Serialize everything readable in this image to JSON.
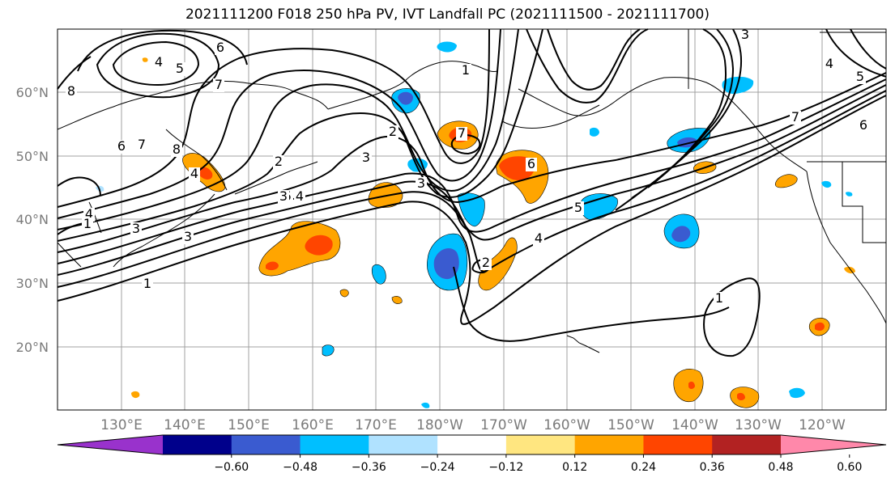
{
  "title": "2021111200 F018 250 hPa PV, IVT Landfall PC (2021111500 - 2021111700)",
  "lat_labels": [
    "60°N",
    "50°N",
    "40°N",
    "30°N",
    "20°N"
  ],
  "lon_labels": [
    "130°E",
    "140°E",
    "150°E",
    "160°E",
    "170°E",
    "180°W",
    "170°W",
    "160°W",
    "150°W",
    "140°W",
    "130°W",
    "120°W"
  ],
  "contour_labels": [
    "4",
    "5",
    "6",
    "7",
    "8",
    "6",
    "7",
    "8",
    "1",
    "2",
    "3",
    "1",
    "3",
    "4",
    "5",
    "4",
    "2",
    "3",
    "1",
    "7",
    "6",
    "5",
    "4",
    "3",
    "4",
    "5",
    "6",
    "7",
    "2",
    "1",
    "3",
    "4",
    "3"
  ],
  "colorbar": {
    "ticks": [
      "−0.60",
      "−0.48",
      "−0.36",
      "−0.24",
      "−0.12",
      "0.12",
      "0.24",
      "0.36",
      "0.48",
      "0.60"
    ],
    "colors": [
      "#9932cc",
      "#00008b",
      "#3a5bd0",
      "#00bfff",
      "#b0e2ff",
      "#ffffff",
      "#ffe680",
      "#ffa500",
      "#ff4500",
      "#b22222",
      "#ff88aa"
    ]
  },
  "colors": {
    "contour": "#000000",
    "grid": "#a0a0a0",
    "coast": "#000000"
  }
}
